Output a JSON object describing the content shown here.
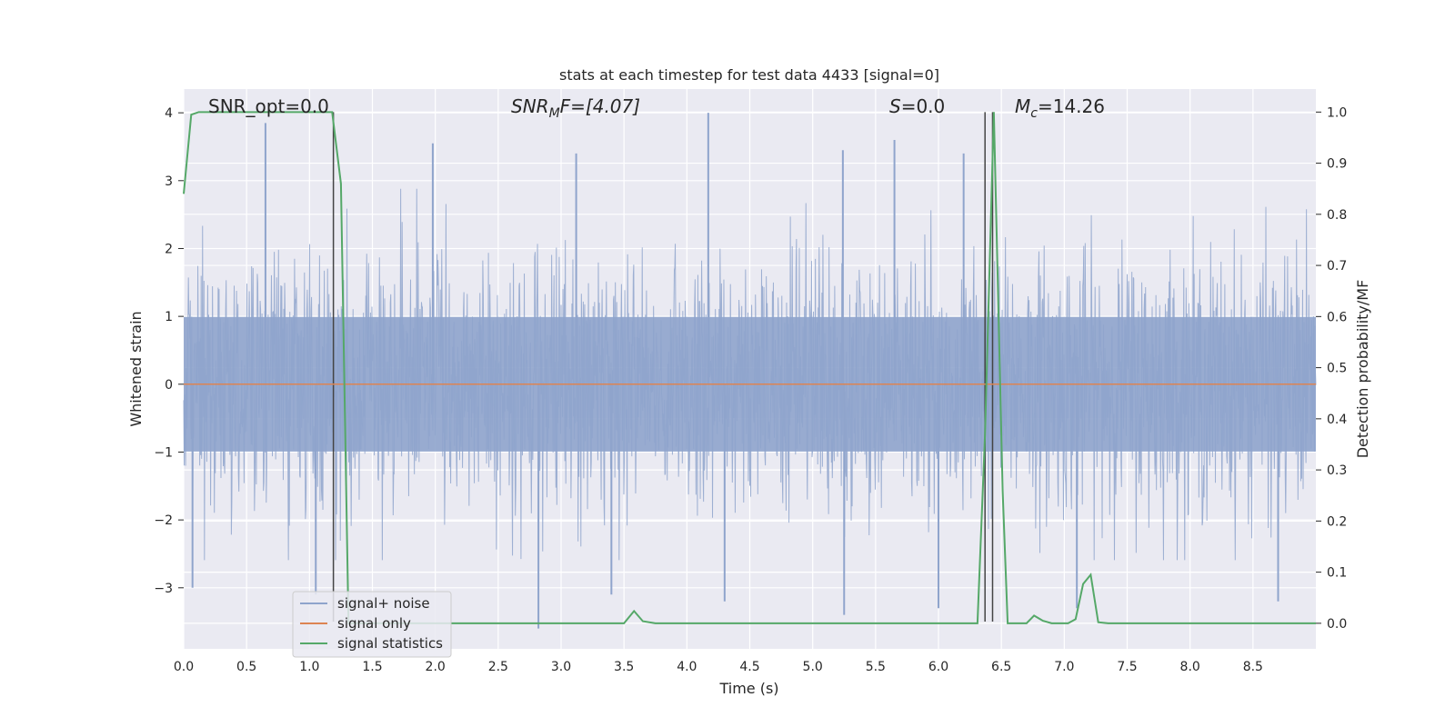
{
  "chart_data": {
    "type": "line",
    "title": "stats at each timestep for test data 4433 [signal=0]",
    "xlabel": "Time (s)",
    "ylabel_left": "Whitened strain",
    "ylabel_right": "Detection probability/MF",
    "xlim": [
      0.0,
      9.0
    ],
    "ylim_left": [
      -3.9,
      4.35
    ],
    "ylim_right": [
      -0.05,
      1.045
    ],
    "xticks": [
      "0.0",
      "0.5",
      "1.0",
      "1.5",
      "2.0",
      "2.5",
      "3.0",
      "3.5",
      "4.0",
      "4.5",
      "5.0",
      "5.5",
      "6.0",
      "6.5",
      "7.0",
      "7.5",
      "8.0",
      "8.5"
    ],
    "yticks_left": [
      4,
      3,
      2,
      1,
      0,
      -1,
      -2,
      -3
    ],
    "yticks_left_labels": [
      "4",
      "3",
      "2",
      "1",
      "0",
      "−1",
      "−2",
      "−3"
    ],
    "yticks_right": [
      1.0,
      0.9,
      0.8,
      0.7,
      0.6,
      0.5,
      0.4,
      0.3,
      0.2,
      0.1,
      0.0
    ],
    "yticks_right_labels": [
      "1.0",
      "0.9",
      "0.8",
      "0.7",
      "0.6",
      "0.5",
      "0.4",
      "0.3",
      "0.2",
      "0.1",
      "0.0"
    ],
    "grid": true,
    "legend": {
      "position": "lower-left",
      "entries": [
        "signal+ noise",
        "signal only",
        "signal statistics"
      ]
    },
    "annotations": {
      "snr_opt": "SNR_opt=0.0",
      "snr_mf_main": "SNR",
      "snr_mf_sub": "M",
      "snr_mf_rest": "F=[4.07]",
      "s_main": "S",
      "s_rest": "=0.0",
      "mc_main": "M",
      "mc_sub": "c",
      "mc_rest": "=14.26"
    },
    "series": [
      {
        "name": "signal+ noise",
        "axis": "left",
        "color": "#8fa4cc",
        "envelope": {
          "typical_upper": 1.6,
          "typical_lower": -1.6,
          "max": 4.0,
          "min": -3.6
        },
        "peaks": [
          [
            0.65,
            3.85
          ],
          [
            1.98,
            3.55
          ],
          [
            3.12,
            3.4
          ],
          [
            4.17,
            4.0
          ],
          [
            5.24,
            3.45
          ],
          [
            5.65,
            3.6
          ],
          [
            6.2,
            3.4
          ],
          [
            2.82,
            -3.6
          ],
          [
            3.4,
            -3.1
          ],
          [
            4.3,
            -3.2
          ],
          [
            5.25,
            -3.4
          ],
          [
            6.0,
            -3.3
          ],
          [
            7.1,
            -3.3
          ],
          [
            8.7,
            -3.2
          ],
          [
            1.05,
            -3.1
          ],
          [
            0.07,
            -3.0
          ]
        ]
      },
      {
        "name": "signal only",
        "axis": "left",
        "color": "#dd8452",
        "x": [
          0.0,
          9.0
        ],
        "y": [
          0.0,
          0.0
        ]
      },
      {
        "name": "signal statistics",
        "axis": "right",
        "color": "#55a868",
        "x": [
          0.0,
          0.06,
          0.12,
          0.2,
          1.18,
          1.25,
          1.31,
          1.36,
          1.45,
          3.5,
          3.58,
          3.65,
          3.75,
          6.31,
          6.37,
          6.44,
          6.51,
          6.55,
          6.7,
          6.76,
          6.83,
          6.9,
          7.03,
          7.09,
          7.15,
          7.21,
          7.27,
          7.35,
          9.0
        ],
        "y": [
          0.84,
          0.995,
          1.0,
          1.0,
          1.0,
          0.86,
          0.0,
          0.0,
          0.0,
          0.0,
          0.024,
          0.004,
          0.0,
          0.0,
          0.37,
          1.0,
          0.26,
          0.0,
          0.0,
          0.015,
          0.005,
          0.0,
          0.0,
          0.008,
          0.077,
          0.095,
          0.002,
          0.0,
          0.0
        ]
      }
    ],
    "vertical_lines": [
      {
        "x": 1.19,
        "y_top": 1.0
      },
      {
        "x": 6.37,
        "y_top": 1.0
      },
      {
        "x": 6.43,
        "y_top": 1.0
      }
    ]
  }
}
